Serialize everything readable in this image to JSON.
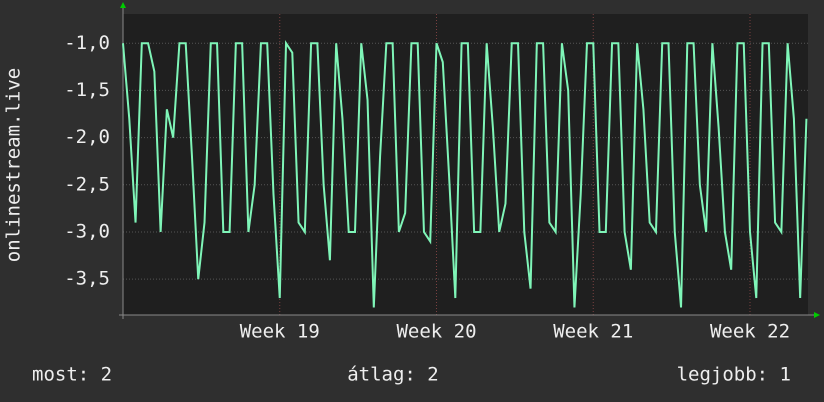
{
  "chart_data": {
    "type": "line",
    "y_label": "onlinestream.live",
    "x": [
      18,
      18.04,
      18.08,
      18.12,
      18.16,
      18.2,
      18.24,
      18.28,
      18.32,
      18.36,
      18.4,
      18.44,
      18.48,
      18.52,
      18.56,
      18.6,
      18.64,
      18.68,
      18.72,
      18.76,
      18.8,
      18.84,
      18.88,
      18.92,
      18.96,
      19,
      19.04,
      19.08,
      19.12,
      19.16,
      19.2,
      19.24,
      19.28,
      19.32,
      19.36,
      19.4,
      19.44,
      19.48,
      19.52,
      19.56,
      19.6,
      19.64,
      19.68,
      19.72,
      19.76,
      19.8,
      19.84,
      19.88,
      19.92,
      19.96,
      20,
      20.04,
      20.08,
      20.12,
      20.16,
      20.2,
      20.24,
      20.28,
      20.32,
      20.36,
      20.4,
      20.44,
      20.48,
      20.52,
      20.56,
      20.6,
      20.64,
      20.68,
      20.72,
      20.76,
      20.8,
      20.84,
      20.88,
      20.92,
      20.96,
      21,
      21.04,
      21.08,
      21.12,
      21.16,
      21.2,
      21.24,
      21.28,
      21.32,
      21.36,
      21.4,
      21.44,
      21.48,
      21.52,
      21.56,
      21.6,
      21.64,
      21.68,
      21.72,
      21.76,
      21.8,
      21.84,
      21.88,
      21.92,
      21.96,
      22,
      22.04,
      22.08,
      22.12,
      22.16,
      22.2,
      22.24,
      22.28,
      22.32,
      22.36
    ],
    "series": [
      {
        "name": "onlinestream.live",
        "color": "#7ff5b8",
        "values": [
          -1.0,
          -1.8,
          -2.9,
          -1.0,
          -1.0,
          -1.3,
          -3.0,
          -1.7,
          -2.0,
          -1.0,
          -1.0,
          -2.2,
          -3.5,
          -2.9,
          -1.0,
          -1.0,
          -3.0,
          -3.0,
          -1.0,
          -1.0,
          -3.0,
          -2.5,
          -1.0,
          -1.0,
          -2.6,
          -3.7,
          -1.0,
          -1.1,
          -2.9,
          -3.0,
          -1.0,
          -1.0,
          -2.5,
          -3.3,
          -1.0,
          -1.8,
          -3.0,
          -3.0,
          -1.0,
          -1.6,
          -3.8,
          -2.2,
          -1.0,
          -1.0,
          -3.0,
          -2.8,
          -1.0,
          -1.0,
          -3.0,
          -3.1,
          -1.0,
          -1.2,
          -2.4,
          -3.7,
          -1.0,
          -1.0,
          -3.0,
          -3.0,
          -1.0,
          -1.9,
          -3.0,
          -2.7,
          -1.0,
          -1.0,
          -3.0,
          -3.6,
          -1.0,
          -1.0,
          -2.9,
          -3.0,
          -1.0,
          -1.5,
          -3.8,
          -2.6,
          -1.0,
          -1.0,
          -3.0,
          -3.0,
          -1.0,
          -1.0,
          -3.0,
          -3.4,
          -1.0,
          -1.7,
          -2.9,
          -3.0,
          -1.0,
          -1.0,
          -3.0,
          -3.8,
          -1.0,
          -1.0,
          -2.5,
          -3.0,
          -1.0,
          -1.9,
          -3.0,
          -3.4,
          -1.0,
          -1.0,
          -3.0,
          -3.7,
          -1.0,
          -1.0,
          -2.9,
          -3.0,
          -1.0,
          -1.8,
          -3.7,
          -1.8
        ]
      }
    ],
    "xlim": [
      18,
      22.37
    ],
    "xticks": [
      {
        "value": 19,
        "label": "Week 19"
      },
      {
        "value": 20,
        "label": "Week 20"
      },
      {
        "value": 21,
        "label": "Week 21"
      },
      {
        "value": 22,
        "label": "Week 22"
      }
    ],
    "ylim": [
      -3.88,
      -0.69
    ],
    "yticks": [
      {
        "value": -1.0,
        "label": "-1,0"
      },
      {
        "value": -1.5,
        "label": "-1,5"
      },
      {
        "value": -2.0,
        "label": "-2,0"
      },
      {
        "value": -2.5,
        "label": "-2,5"
      },
      {
        "value": -3.0,
        "label": "-3,0"
      },
      {
        "value": -3.5,
        "label": "-3,5"
      }
    ],
    "grid": true,
    "footer": [
      "most: 2",
      "átlag: 2",
      "legjobb: 1"
    ]
  }
}
